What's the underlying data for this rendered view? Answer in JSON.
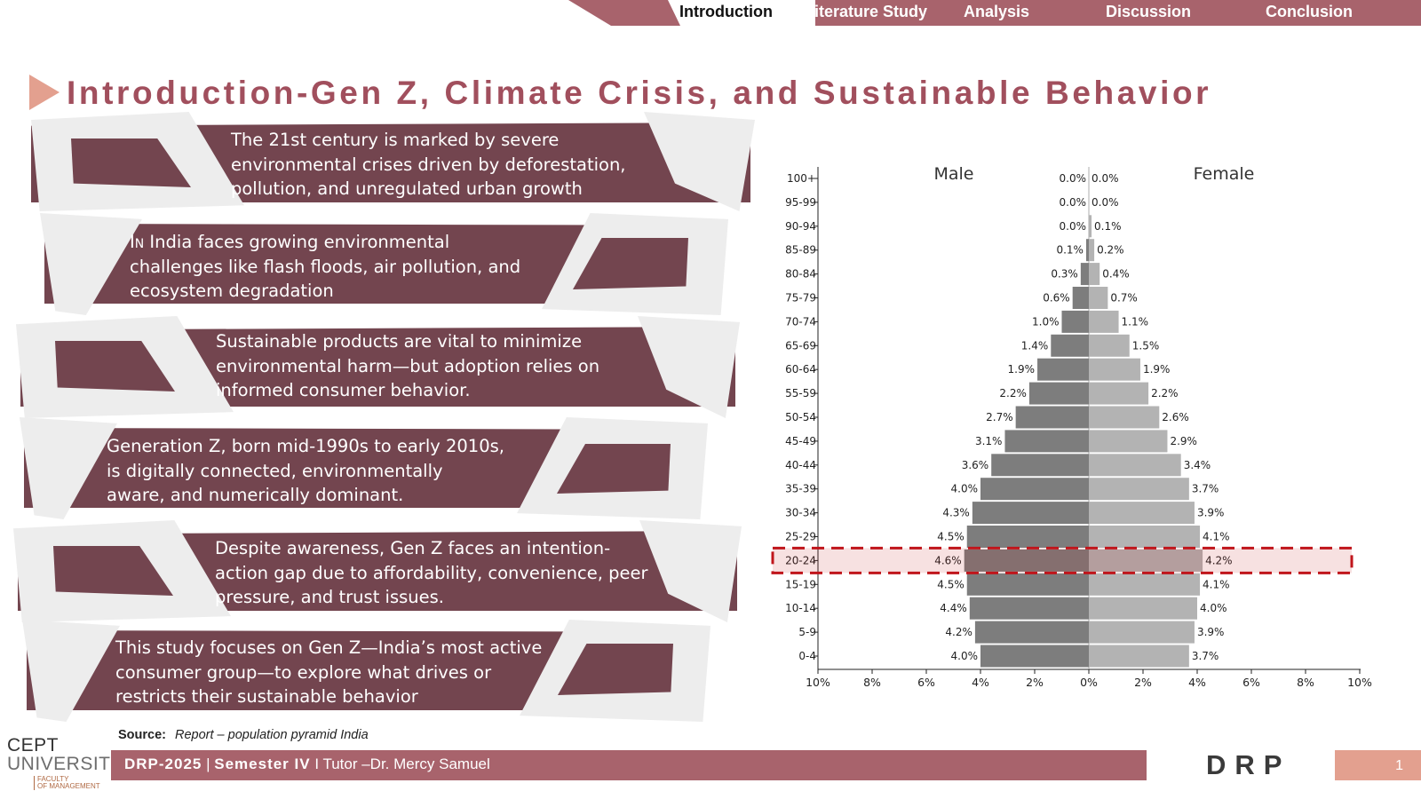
{
  "nav": {
    "tabs": [
      {
        "label": "Introduction",
        "active": true
      },
      {
        "label": "Literature Study",
        "active": false
      },
      {
        "label": "Analysis",
        "active": false
      },
      {
        "label": "Discussion",
        "active": false
      },
      {
        "label": "Conclusion",
        "active": false
      }
    ]
  },
  "title": "Introduction-Gen Z, Climate Crisis, and Sustainable Behavior",
  "bullets": [
    {
      "text": "The 21st century is marked by severe\nenvironmental crises driven by deforestation,\npollution, and unregulated urban growth"
    },
    {
      "prefix": "In",
      "text": " India faces growing environmental\nchallenges like flash floods, air pollution, and\necosystem degradation"
    },
    {
      "text": "Sustainable products are vital to minimize\nenvironmental harm—but adoption relies on\ninformed consumer behavior."
    },
    {
      "text": "Generation Z, born mid-1990s to early 2010s,\nis digitally connected, environmentally\naware, and numerically dominant."
    },
    {
      "text": "Despite awareness, Gen Z faces an intention-\naction gap due to affordability, convenience, peer\npressure, and trust issues."
    },
    {
      "text": "This study focuses on Gen Z—India’s most active\nconsumer group—to explore what drives or\nrestricts their sustainable behavior"
    }
  ],
  "chart_data": {
    "type": "bar",
    "orientation": "horizontal",
    "subtype": "population-pyramid",
    "categories": [
      "100+",
      "95-99",
      "90-94",
      "85-89",
      "80-84",
      "75-79",
      "70-74",
      "65-69",
      "60-64",
      "55-59",
      "50-54",
      "45-49",
      "40-44",
      "35-39",
      "30-34",
      "25-29",
      "20-24",
      "15-19",
      "10-14",
      "5-9",
      "0-4"
    ],
    "series": [
      {
        "name": "Male",
        "color": "#7d7d7d",
        "values": [
          0.0,
          0.0,
          0.0,
          0.1,
          0.3,
          0.6,
          1.0,
          1.4,
          1.9,
          2.2,
          2.7,
          3.1,
          3.6,
          4.0,
          4.3,
          4.5,
          4.6,
          4.5,
          4.4,
          4.2,
          4.0
        ]
      },
      {
        "name": "Female",
        "color": "#b3b3b3",
        "values": [
          0.0,
          0.0,
          0.1,
          0.2,
          0.4,
          0.7,
          1.1,
          1.5,
          1.9,
          2.2,
          2.6,
          2.9,
          3.4,
          3.7,
          3.9,
          4.1,
          4.2,
          4.1,
          4.0,
          3.9,
          3.7
        ]
      }
    ],
    "value_labels_male": [
      "0.0%",
      "0.0%",
      "0.0%",
      "0.1%",
      "0.3%",
      "0.6%",
      "1.0%",
      "1.4%",
      "1.9%",
      "2.2%",
      "2.7%",
      "3.1%",
      "3.6%",
      "4.0%",
      "4.3%",
      "4.5%",
      "4.6%",
      "4.5%",
      "4.4%",
      "4.2%",
      "4.0%"
    ],
    "value_labels_female": [
      "0.0%",
      "0.0%",
      "0.1%",
      "0.2%",
      "0.4%",
      "0.7%",
      "1.1%",
      "1.5%",
      "1.9%",
      "2.2%",
      "2.6%",
      "2.9%",
      "3.4%",
      "3.7%",
      "3.9%",
      "4.1%",
      "4.2%",
      "4.1%",
      "4.0%",
      "3.9%",
      "3.7%"
    ],
    "x_ticks": [
      "10%",
      "8%",
      "6%",
      "4%",
      "2%",
      "0%",
      "2%",
      "4%",
      "6%",
      "8%",
      "10%"
    ],
    "xlim": [
      -10,
      10
    ],
    "highlight_category": "20-24",
    "highlight_color": "#c0151b",
    "grid": false,
    "legend": "none"
  },
  "source": {
    "label": "Source:",
    "value": "Report – population pyramid India"
  },
  "logo": {
    "line1": "CEPT",
    "line2": "UNIVERSITY",
    "line3": "FACULTY\nOF MANAGEMENT"
  },
  "footer": {
    "course": "DRP-2025",
    "semester": "Semester IV",
    "tutor": " I Tutor –Dr. Mercy Samuel"
  },
  "brand": "DRP",
  "page_number": "1",
  "colors": {
    "accent": "#a8636c",
    "band": "#73454f",
    "title": "#a14f5d",
    "highlight": "#c0151b",
    "arrow": "#e3a08f"
  }
}
